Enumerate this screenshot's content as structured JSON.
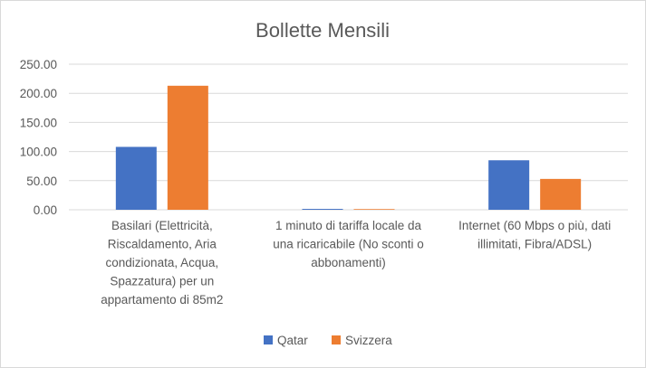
{
  "chart_data": {
    "type": "bar",
    "title": "Bollette Mensili",
    "xlabel": "",
    "ylabel": "",
    "ylim": [
      0,
      250
    ],
    "yticks": [
      "0.00",
      "50.00",
      "100.00",
      "150.00",
      "200.00",
      "250.00"
    ],
    "categories": [
      "Basilari (Elettricità, Riscaldamento, Aria condizionata, Acqua, Spazzatura) per un appartamento di 85m2",
      "1 minuto di tariffa locale da una ricaricabile (No sconti o abbonamenti)",
      "Internet (60 Mbps o più, dati illimitati, Fibra/ADSL)"
    ],
    "category_lines": [
      [
        "Basilari (Elettricità,",
        "Riscaldamento, Aria",
        "condizionata, Acqua,",
        "Spazzatura) per un",
        "appartamento di 85m2"
      ],
      [
        "1 minuto di tariffa locale da",
        "una ricaricabile (No sconti o",
        "abbonamenti)"
      ],
      [
        "Internet (60 Mbps o più, dati",
        "illimitati, Fibra/ADSL)"
      ]
    ],
    "series": [
      {
        "name": "Qatar",
        "color": "#4472c4",
        "values": [
          108,
          1.5,
          85
        ]
      },
      {
        "name": "Svizzera",
        "color": "#ed7d31",
        "values": [
          213,
          1.2,
          53
        ]
      }
    ],
    "grid": true,
    "legend": "bottom"
  }
}
